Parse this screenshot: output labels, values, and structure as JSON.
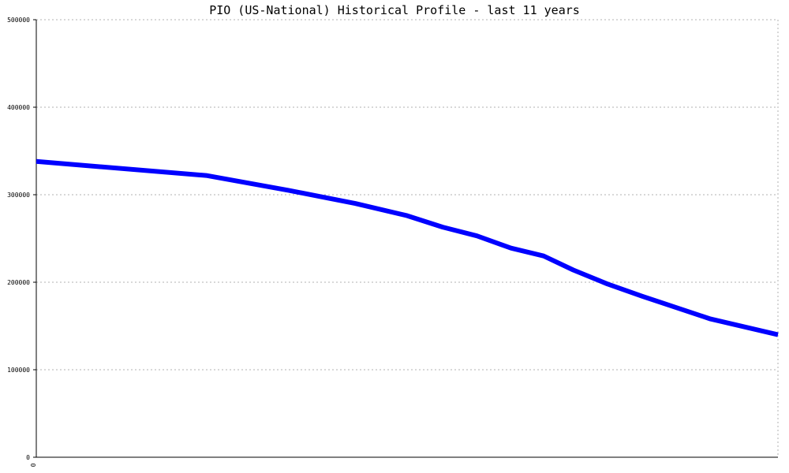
{
  "chart_data": {
    "type": "line",
    "title": "PIO (US-National) Historical Profile - last 11 years",
    "xlabel": "",
    "ylabel": "",
    "ylim": [
      0,
      500000
    ],
    "yticks": [
      0,
      100000,
      200000,
      300000,
      400000,
      500000
    ],
    "xticks": [
      "0"
    ],
    "grid": true,
    "colors": {
      "line": "#0000ff",
      "grid": "#b0b0b0",
      "axis": "#000000"
    },
    "series": [
      {
        "values": [
          338000,
          322000,
          305000,
          290000,
          276000,
          263000,
          253000,
          239000,
          230000,
          214000,
          198000,
          184000,
          171000,
          158000,
          140000
        ],
        "x": [
          0,
          0.229,
          0.34,
          0.43,
          0.5,
          0.548,
          0.594,
          0.64,
          0.684,
          0.724,
          0.77,
          0.817,
          0.863,
          0.909,
          1.0
        ]
      }
    ]
  }
}
